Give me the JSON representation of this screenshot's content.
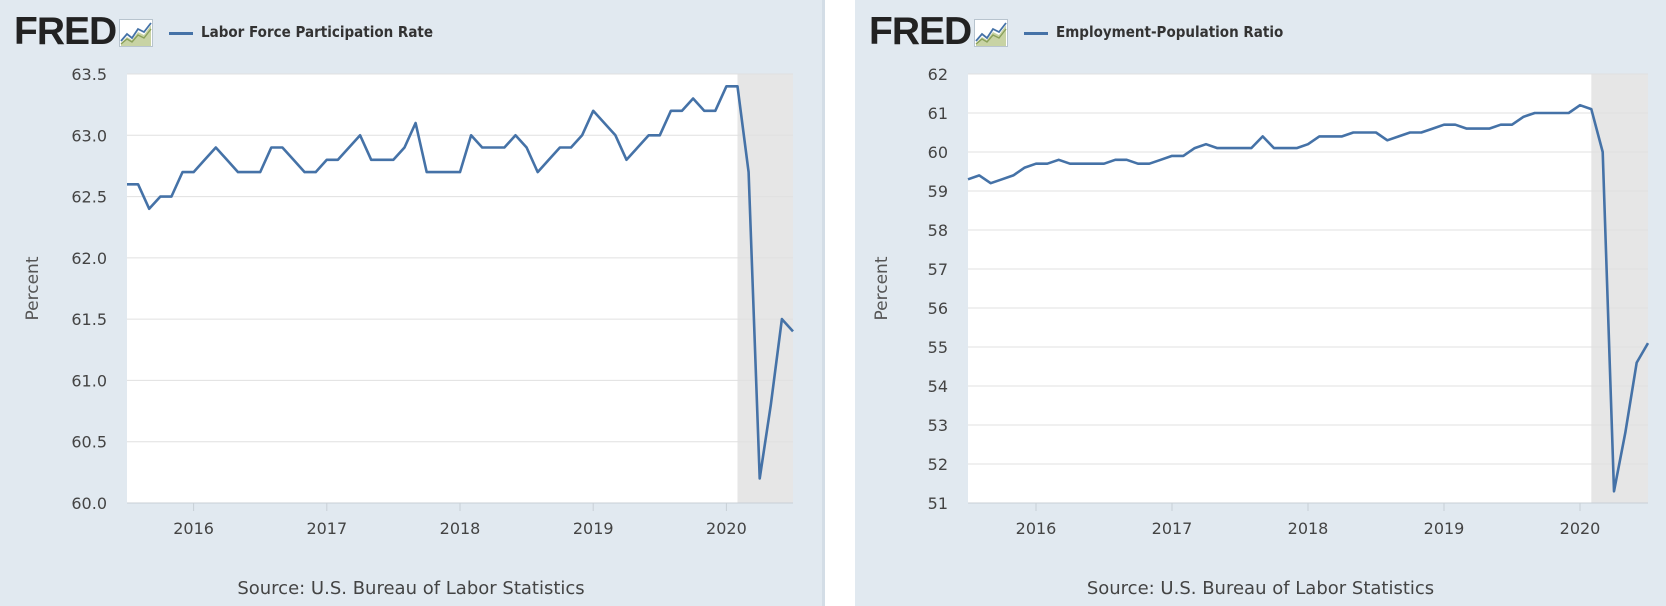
{
  "panels": [
    {
      "brand": "FRED",
      "legend": "Labor Force Participation Rate",
      "source": "Source: U.S. Bureau of Labor Statistics"
    },
    {
      "brand": "FRED",
      "legend": "Employment-Population Ratio",
      "source": "Source: U.S. Bureau of Labor Statistics"
    }
  ],
  "colors": {
    "series": "#4572a7",
    "panel_bg": "#e1e9f0",
    "recession_shade": "#e6e6e6",
    "gridline": "#e0e0e0"
  },
  "icons": [
    "fred-graph-icon"
  ],
  "chart_data": [
    {
      "type": "line",
      "title": "",
      "xlabel": "",
      "ylabel": "Percent",
      "ylim": [
        60.0,
        63.5
      ],
      "yticks": [
        "60.0",
        "60.5",
        "61.0",
        "61.5",
        "62.0",
        "62.5",
        "63.0",
        "63.5"
      ],
      "xlim": [
        "2015-07",
        "2020-07"
      ],
      "xticks": [
        "2016",
        "2017",
        "2018",
        "2019",
        "2020"
      ],
      "grid": true,
      "legend_position": "top-left",
      "recession_shading": [
        "2020-02",
        "2020-07"
      ],
      "series": [
        {
          "name": "Labor Force Participation Rate",
          "x": [
            "2015-07",
            "2015-08",
            "2015-09",
            "2015-10",
            "2015-11",
            "2015-12",
            "2016-01",
            "2016-02",
            "2016-03",
            "2016-04",
            "2016-05",
            "2016-06",
            "2016-07",
            "2016-08",
            "2016-09",
            "2016-10",
            "2016-11",
            "2016-12",
            "2017-01",
            "2017-02",
            "2017-03",
            "2017-04",
            "2017-05",
            "2017-06",
            "2017-07",
            "2017-08",
            "2017-09",
            "2017-10",
            "2017-11",
            "2017-12",
            "2018-01",
            "2018-02",
            "2018-03",
            "2018-04",
            "2018-05",
            "2018-06",
            "2018-07",
            "2018-08",
            "2018-09",
            "2018-10",
            "2018-11",
            "2018-12",
            "2019-01",
            "2019-02",
            "2019-03",
            "2019-04",
            "2019-05",
            "2019-06",
            "2019-07",
            "2019-08",
            "2019-09",
            "2019-10",
            "2019-11",
            "2019-12",
            "2020-01",
            "2020-02",
            "2020-03",
            "2020-04",
            "2020-05",
            "2020-06",
            "2020-07"
          ],
          "values": [
            62.6,
            62.6,
            62.4,
            62.5,
            62.5,
            62.7,
            62.7,
            62.8,
            62.9,
            62.8,
            62.7,
            62.7,
            62.7,
            62.9,
            62.9,
            62.8,
            62.7,
            62.7,
            62.8,
            62.8,
            62.9,
            63.0,
            62.8,
            62.8,
            62.8,
            62.9,
            63.1,
            62.7,
            62.7,
            62.7,
            62.7,
            63.0,
            62.9,
            62.9,
            62.9,
            63.0,
            62.9,
            62.7,
            62.8,
            62.9,
            62.9,
            63.0,
            63.2,
            63.1,
            63.0,
            62.8,
            62.9,
            63.0,
            63.0,
            63.2,
            63.2,
            63.3,
            63.2,
            63.2,
            63.4,
            63.4,
            62.7,
            60.2,
            60.8,
            61.5,
            61.4
          ]
        }
      ]
    },
    {
      "type": "line",
      "title": "",
      "xlabel": "",
      "ylabel": "Percent",
      "ylim": [
        51,
        62
      ],
      "yticks": [
        "51",
        "52",
        "53",
        "54",
        "55",
        "56",
        "57",
        "58",
        "59",
        "60",
        "61",
        "62"
      ],
      "xlim": [
        "2015-07",
        "2020-07"
      ],
      "xticks": [
        "2016",
        "2017",
        "2018",
        "2019",
        "2020"
      ],
      "grid": true,
      "legend_position": "top-left",
      "recession_shading": [
        "2020-02",
        "2020-07"
      ],
      "series": [
        {
          "name": "Employment-Population Ratio",
          "x": [
            "2015-07",
            "2015-08",
            "2015-09",
            "2015-10",
            "2015-11",
            "2015-12",
            "2016-01",
            "2016-02",
            "2016-03",
            "2016-04",
            "2016-05",
            "2016-06",
            "2016-07",
            "2016-08",
            "2016-09",
            "2016-10",
            "2016-11",
            "2016-12",
            "2017-01",
            "2017-02",
            "2017-03",
            "2017-04",
            "2017-05",
            "2017-06",
            "2017-07",
            "2017-08",
            "2017-09",
            "2017-10",
            "2017-11",
            "2017-12",
            "2018-01",
            "2018-02",
            "2018-03",
            "2018-04",
            "2018-05",
            "2018-06",
            "2018-07",
            "2018-08",
            "2018-09",
            "2018-10",
            "2018-11",
            "2018-12",
            "2019-01",
            "2019-02",
            "2019-03",
            "2019-04",
            "2019-05",
            "2019-06",
            "2019-07",
            "2019-08",
            "2019-09",
            "2019-10",
            "2019-11",
            "2019-12",
            "2020-01",
            "2020-02",
            "2020-03",
            "2020-04",
            "2020-05",
            "2020-06",
            "2020-07"
          ],
          "values": [
            59.3,
            59.4,
            59.2,
            59.3,
            59.4,
            59.6,
            59.7,
            59.7,
            59.8,
            59.7,
            59.7,
            59.7,
            59.7,
            59.8,
            59.8,
            59.7,
            59.7,
            59.8,
            59.9,
            59.9,
            60.1,
            60.2,
            60.1,
            60.1,
            60.1,
            60.1,
            60.4,
            60.1,
            60.1,
            60.1,
            60.2,
            60.4,
            60.4,
            60.4,
            60.5,
            60.5,
            60.5,
            60.3,
            60.4,
            60.5,
            60.5,
            60.6,
            60.7,
            60.7,
            60.6,
            60.6,
            60.6,
            60.7,
            60.7,
            60.9,
            61.0,
            61.0,
            61.0,
            61.0,
            61.2,
            61.1,
            60.0,
            51.3,
            52.8,
            54.6,
            55.1
          ]
        }
      ]
    }
  ]
}
